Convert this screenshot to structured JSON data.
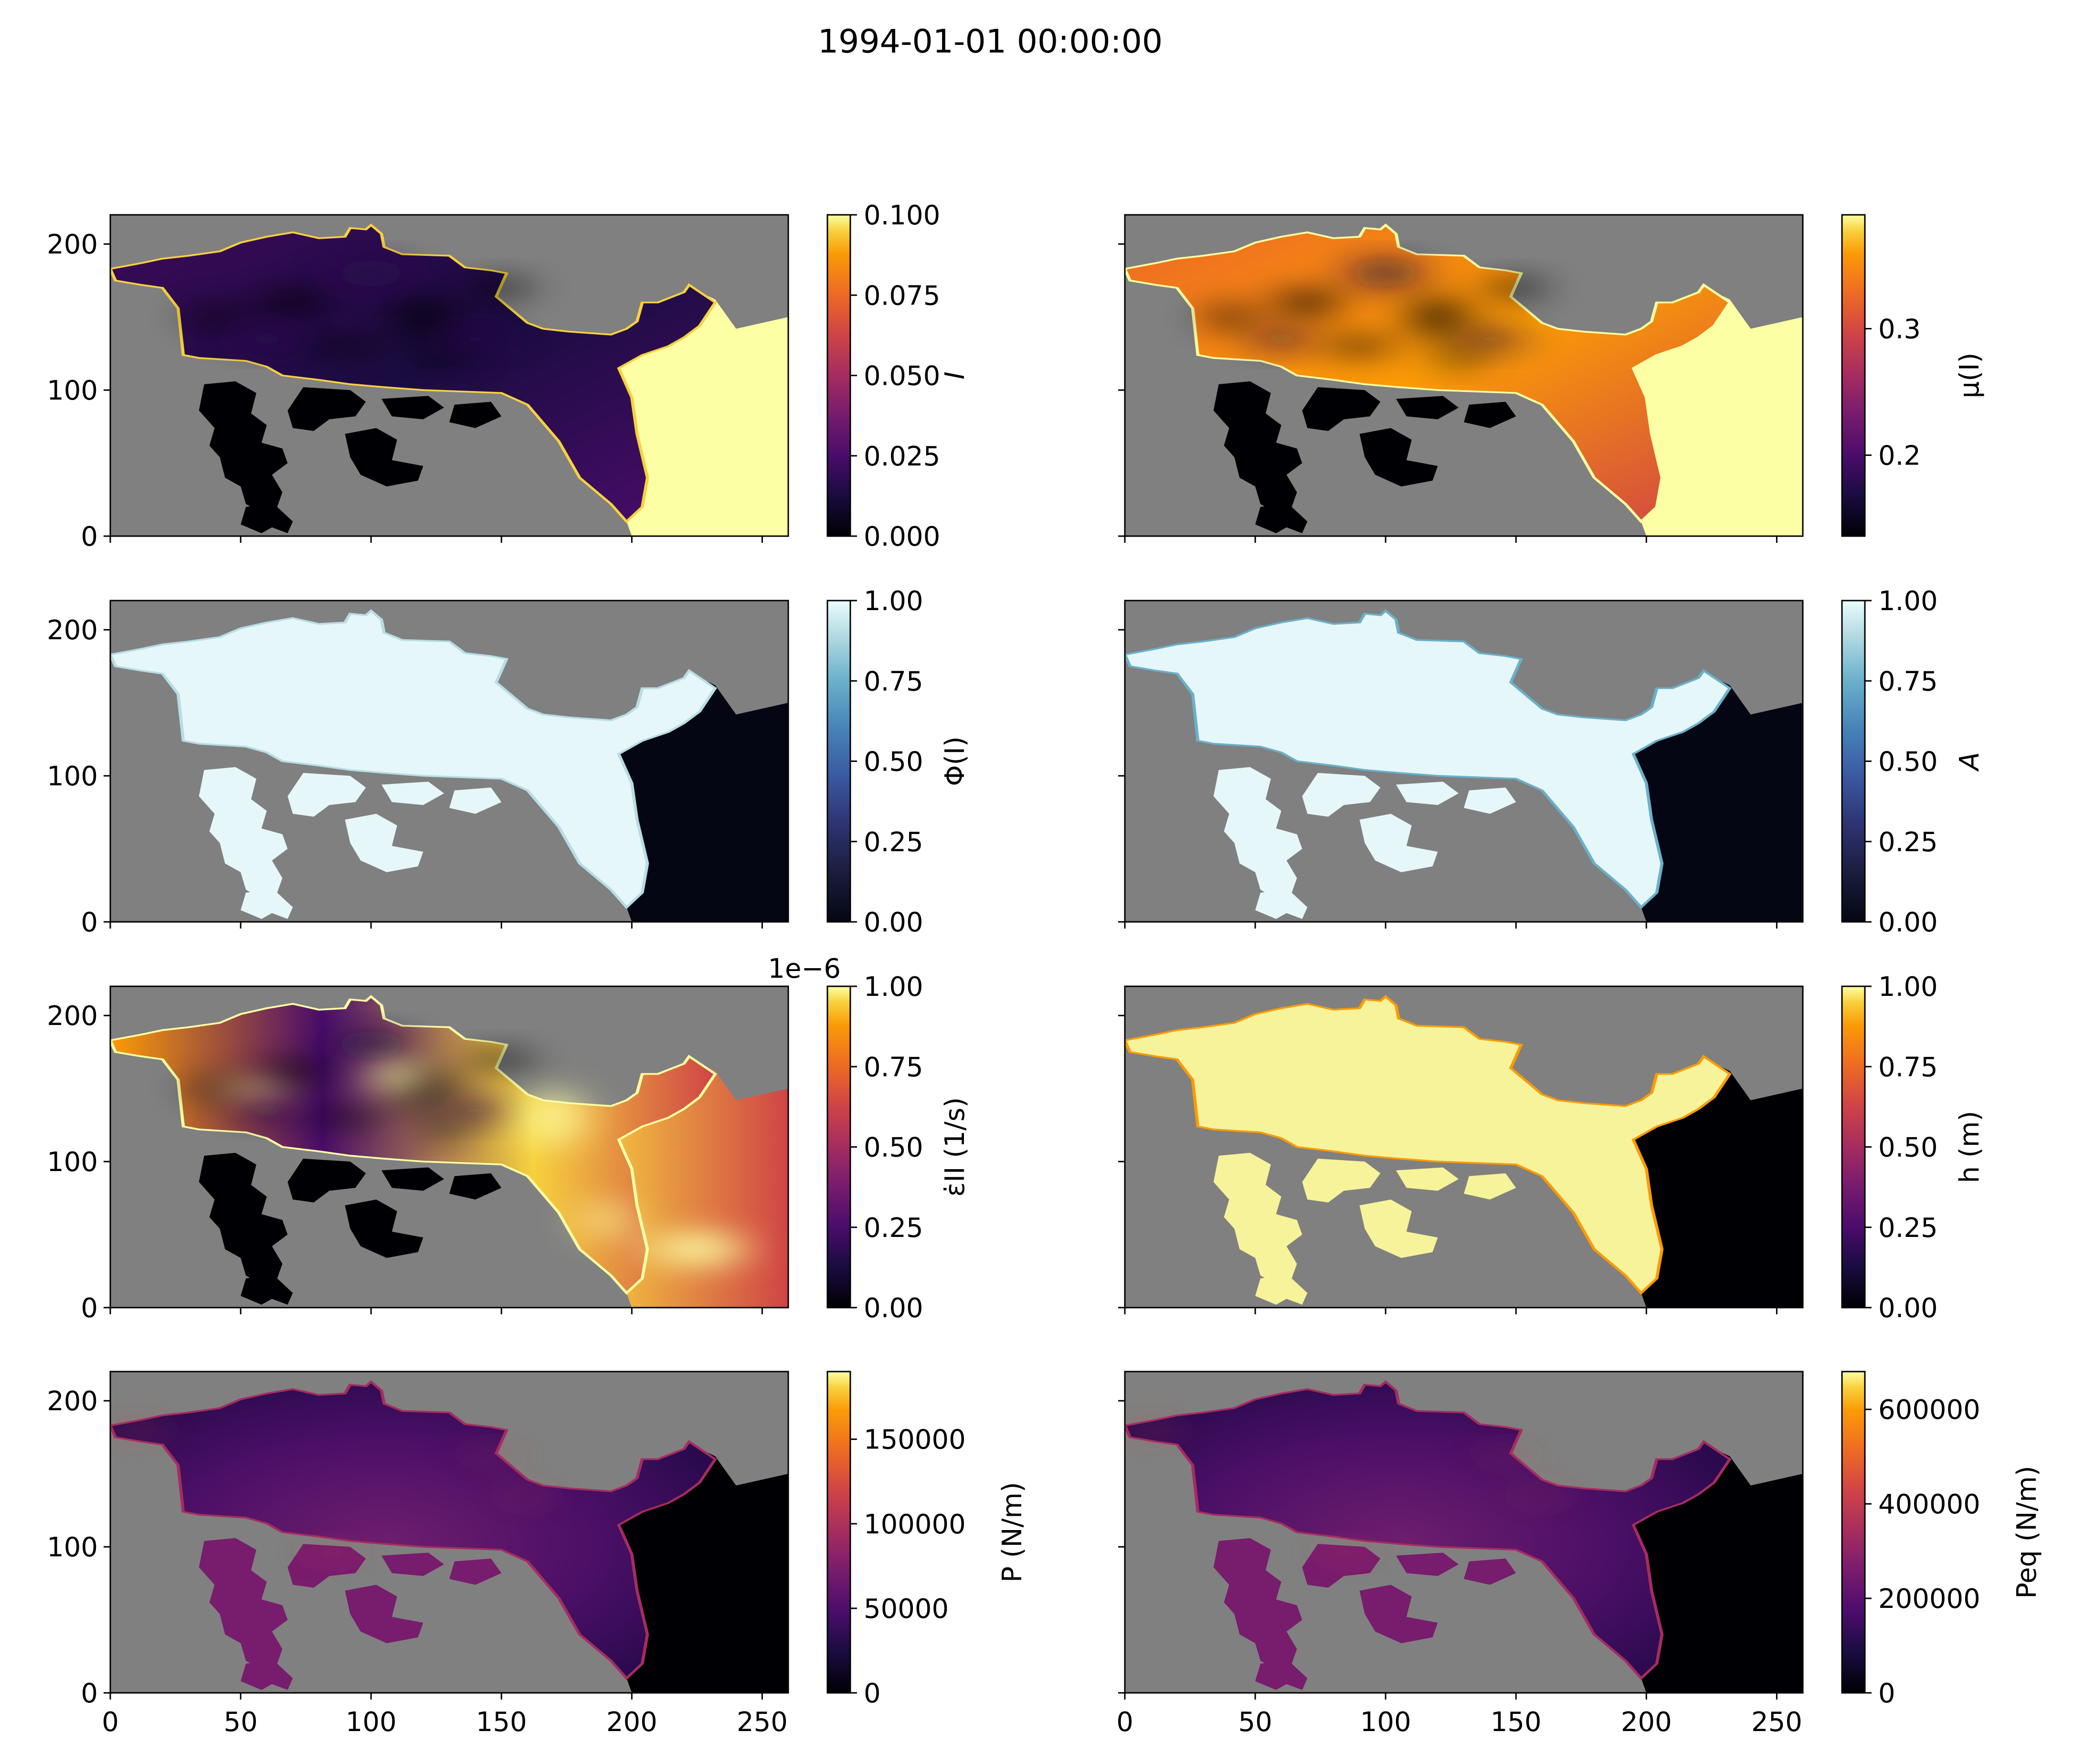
{
  "figure": {
    "title": "1994-01-01 00:00:00",
    "x_ticks": [
      "0",
      "50",
      "100",
      "150",
      "200",
      "250"
    ],
    "y_ticks": [
      "0",
      "100",
      "200"
    ],
    "xlim": [
      0,
      260
    ],
    "ylim": [
      0,
      220
    ]
  },
  "colors": {
    "land": "#808080",
    "axes": "#000000",
    "background": "#ffffff"
  },
  "chart_data": [
    {
      "type": "heatmap",
      "panel": "I",
      "colorbar_label": "I",
      "colormap": "inferno",
      "clim": [
        0,
        0.1
      ],
      "colorbar_ticks": [
        "0.000",
        "0.025",
        "0.050",
        "0.075",
        "0.100"
      ],
      "colorbar_offset": "",
      "xlim": [
        0,
        260
      ],
      "ylim": [
        0,
        220
      ]
    },
    {
      "type": "heatmap",
      "panel": "mu",
      "colorbar_label": "μ(I)",
      "colormap": "inferno",
      "clim": [
        0.136,
        0.39
      ],
      "colorbar_ticks": [
        "0.2",
        "0.3"
      ],
      "colorbar_tick_values": [
        0.2,
        0.3
      ],
      "colorbar_offset": "",
      "xlim": [
        0,
        260
      ],
      "ylim": [
        0,
        220
      ]
    },
    {
      "type": "heatmap",
      "panel": "Phi",
      "colorbar_label": "Φ(I)",
      "colormap": "ice",
      "clim": [
        0,
        1
      ],
      "colorbar_ticks": [
        "0.00",
        "0.25",
        "0.50",
        "0.75",
        "1.00"
      ],
      "colorbar_offset": "",
      "xlim": [
        0,
        260
      ],
      "ylim": [
        0,
        220
      ]
    },
    {
      "type": "heatmap",
      "panel": "A",
      "colorbar_label": "A",
      "colormap": "ice",
      "clim": [
        0,
        1
      ],
      "colorbar_ticks": [
        "0.00",
        "0.25",
        "0.50",
        "0.75",
        "1.00"
      ],
      "colorbar_offset": "",
      "xlim": [
        0,
        260
      ],
      "ylim": [
        0,
        220
      ]
    },
    {
      "type": "heatmap",
      "panel": "strain",
      "colorbar_label": "ε̇II (1/s)",
      "colormap": "inferno",
      "clim": [
        0,
        1e-06
      ],
      "colorbar_ticks": [
        "0.00",
        "0.25",
        "0.50",
        "0.75",
        "1.00"
      ],
      "colorbar_offset": "1e−6",
      "xlim": [
        0,
        260
      ],
      "ylim": [
        0,
        220
      ]
    },
    {
      "type": "heatmap",
      "panel": "h",
      "colorbar_label": "h (m)",
      "colormap": "inferno",
      "clim": [
        0,
        1
      ],
      "colorbar_ticks": [
        "0.00",
        "0.25",
        "0.50",
        "0.75",
        "1.00"
      ],
      "colorbar_offset": "",
      "xlim": [
        0,
        260
      ],
      "ylim": [
        0,
        220
      ]
    },
    {
      "type": "heatmap",
      "panel": "P",
      "colorbar_label": "P (N/m)",
      "colormap": "inferno",
      "clim": [
        0,
        190000
      ],
      "colorbar_ticks": [
        "0",
        "50000",
        "100000",
        "150000"
      ],
      "colorbar_tick_values": [
        0,
        50000,
        100000,
        150000
      ],
      "colorbar_offset": "",
      "xlim": [
        0,
        260
      ],
      "ylim": [
        0,
        220
      ]
    },
    {
      "type": "heatmap",
      "panel": "Peq",
      "colorbar_label": "Peq (N/m)",
      "colormap": "inferno",
      "clim": [
        0,
        680000
      ],
      "colorbar_ticks": [
        "0",
        "200000",
        "400000",
        "600000"
      ],
      "colorbar_tick_values": [
        0,
        200000,
        400000,
        600000
      ],
      "colorbar_offset": "",
      "xlim": [
        0,
        260
      ],
      "ylim": [
        0,
        220
      ]
    }
  ]
}
